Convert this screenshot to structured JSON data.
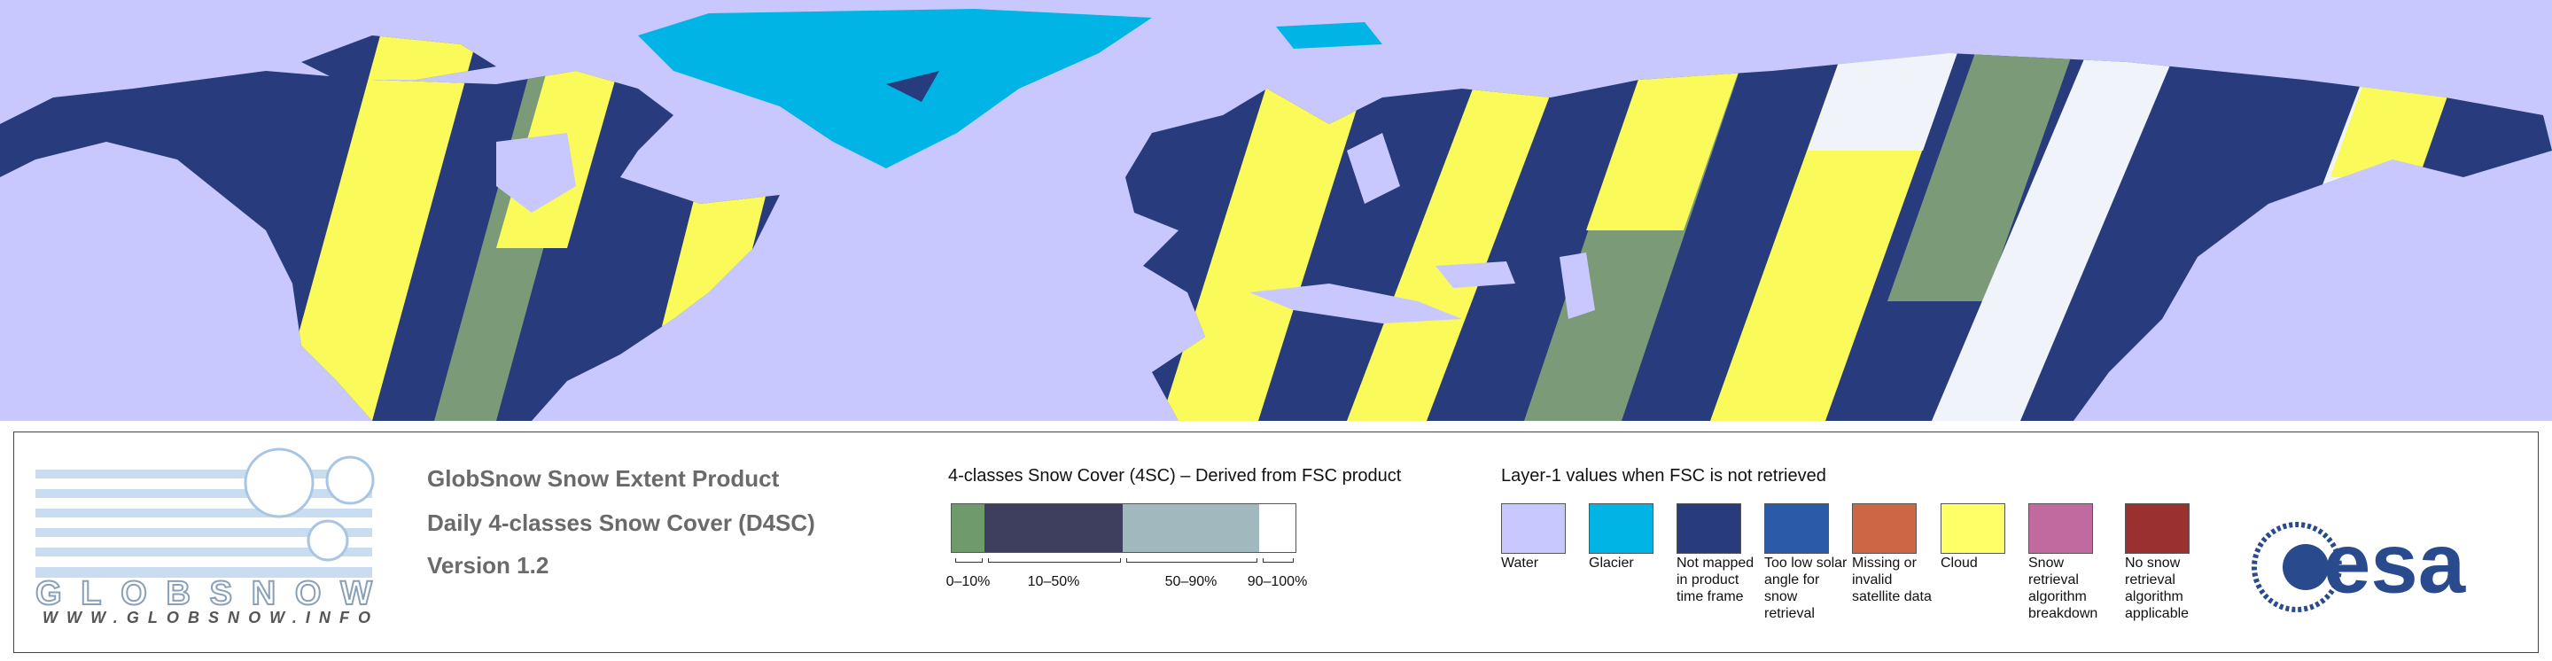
{
  "logo": {
    "brand": "GLOBSNOW",
    "url": "WWW.GLOBSNOW.INFO"
  },
  "product": {
    "title": "GlobSnow Snow Extent Product",
    "subtitle": "Daily 4-classes Snow Cover (D4SC)",
    "version": "Version 1.2"
  },
  "four_class": {
    "title": "4-classes Snow Cover (4SC) – Derived from FSC product",
    "classes": [
      {
        "label": "0–10%",
        "color": "#6f9a6b"
      },
      {
        "label": "10–50%",
        "color": "#3e3e5e"
      },
      {
        "label": "50–90%",
        "color": "#a2b8bf"
      },
      {
        "label": "90–100%",
        "color": "#ffffff"
      }
    ]
  },
  "layer1": {
    "title": "Layer-1 values when FSC is not retrieved",
    "items": [
      {
        "label": "Water",
        "color": "#c8c8ff"
      },
      {
        "label": "Glacier",
        "color": "#00b4e6"
      },
      {
        "label": "Not mapped in product time frame",
        "color": "#283b7c"
      },
      {
        "label": "Too low solar angle for snow retrieval",
        "color": "#2a5aa8"
      },
      {
        "label": "Missing or invalid satellite data",
        "color": "#cc6644"
      },
      {
        "label": "Cloud",
        "color": "#ffff66"
      },
      {
        "label": "Snow retrieval algorithm breakdown",
        "color": "#c06aa0"
      },
      {
        "label": "No snow retrieval algorithm applicable",
        "color": "#9a3030"
      }
    ]
  },
  "esa": {
    "name": "esa"
  }
}
